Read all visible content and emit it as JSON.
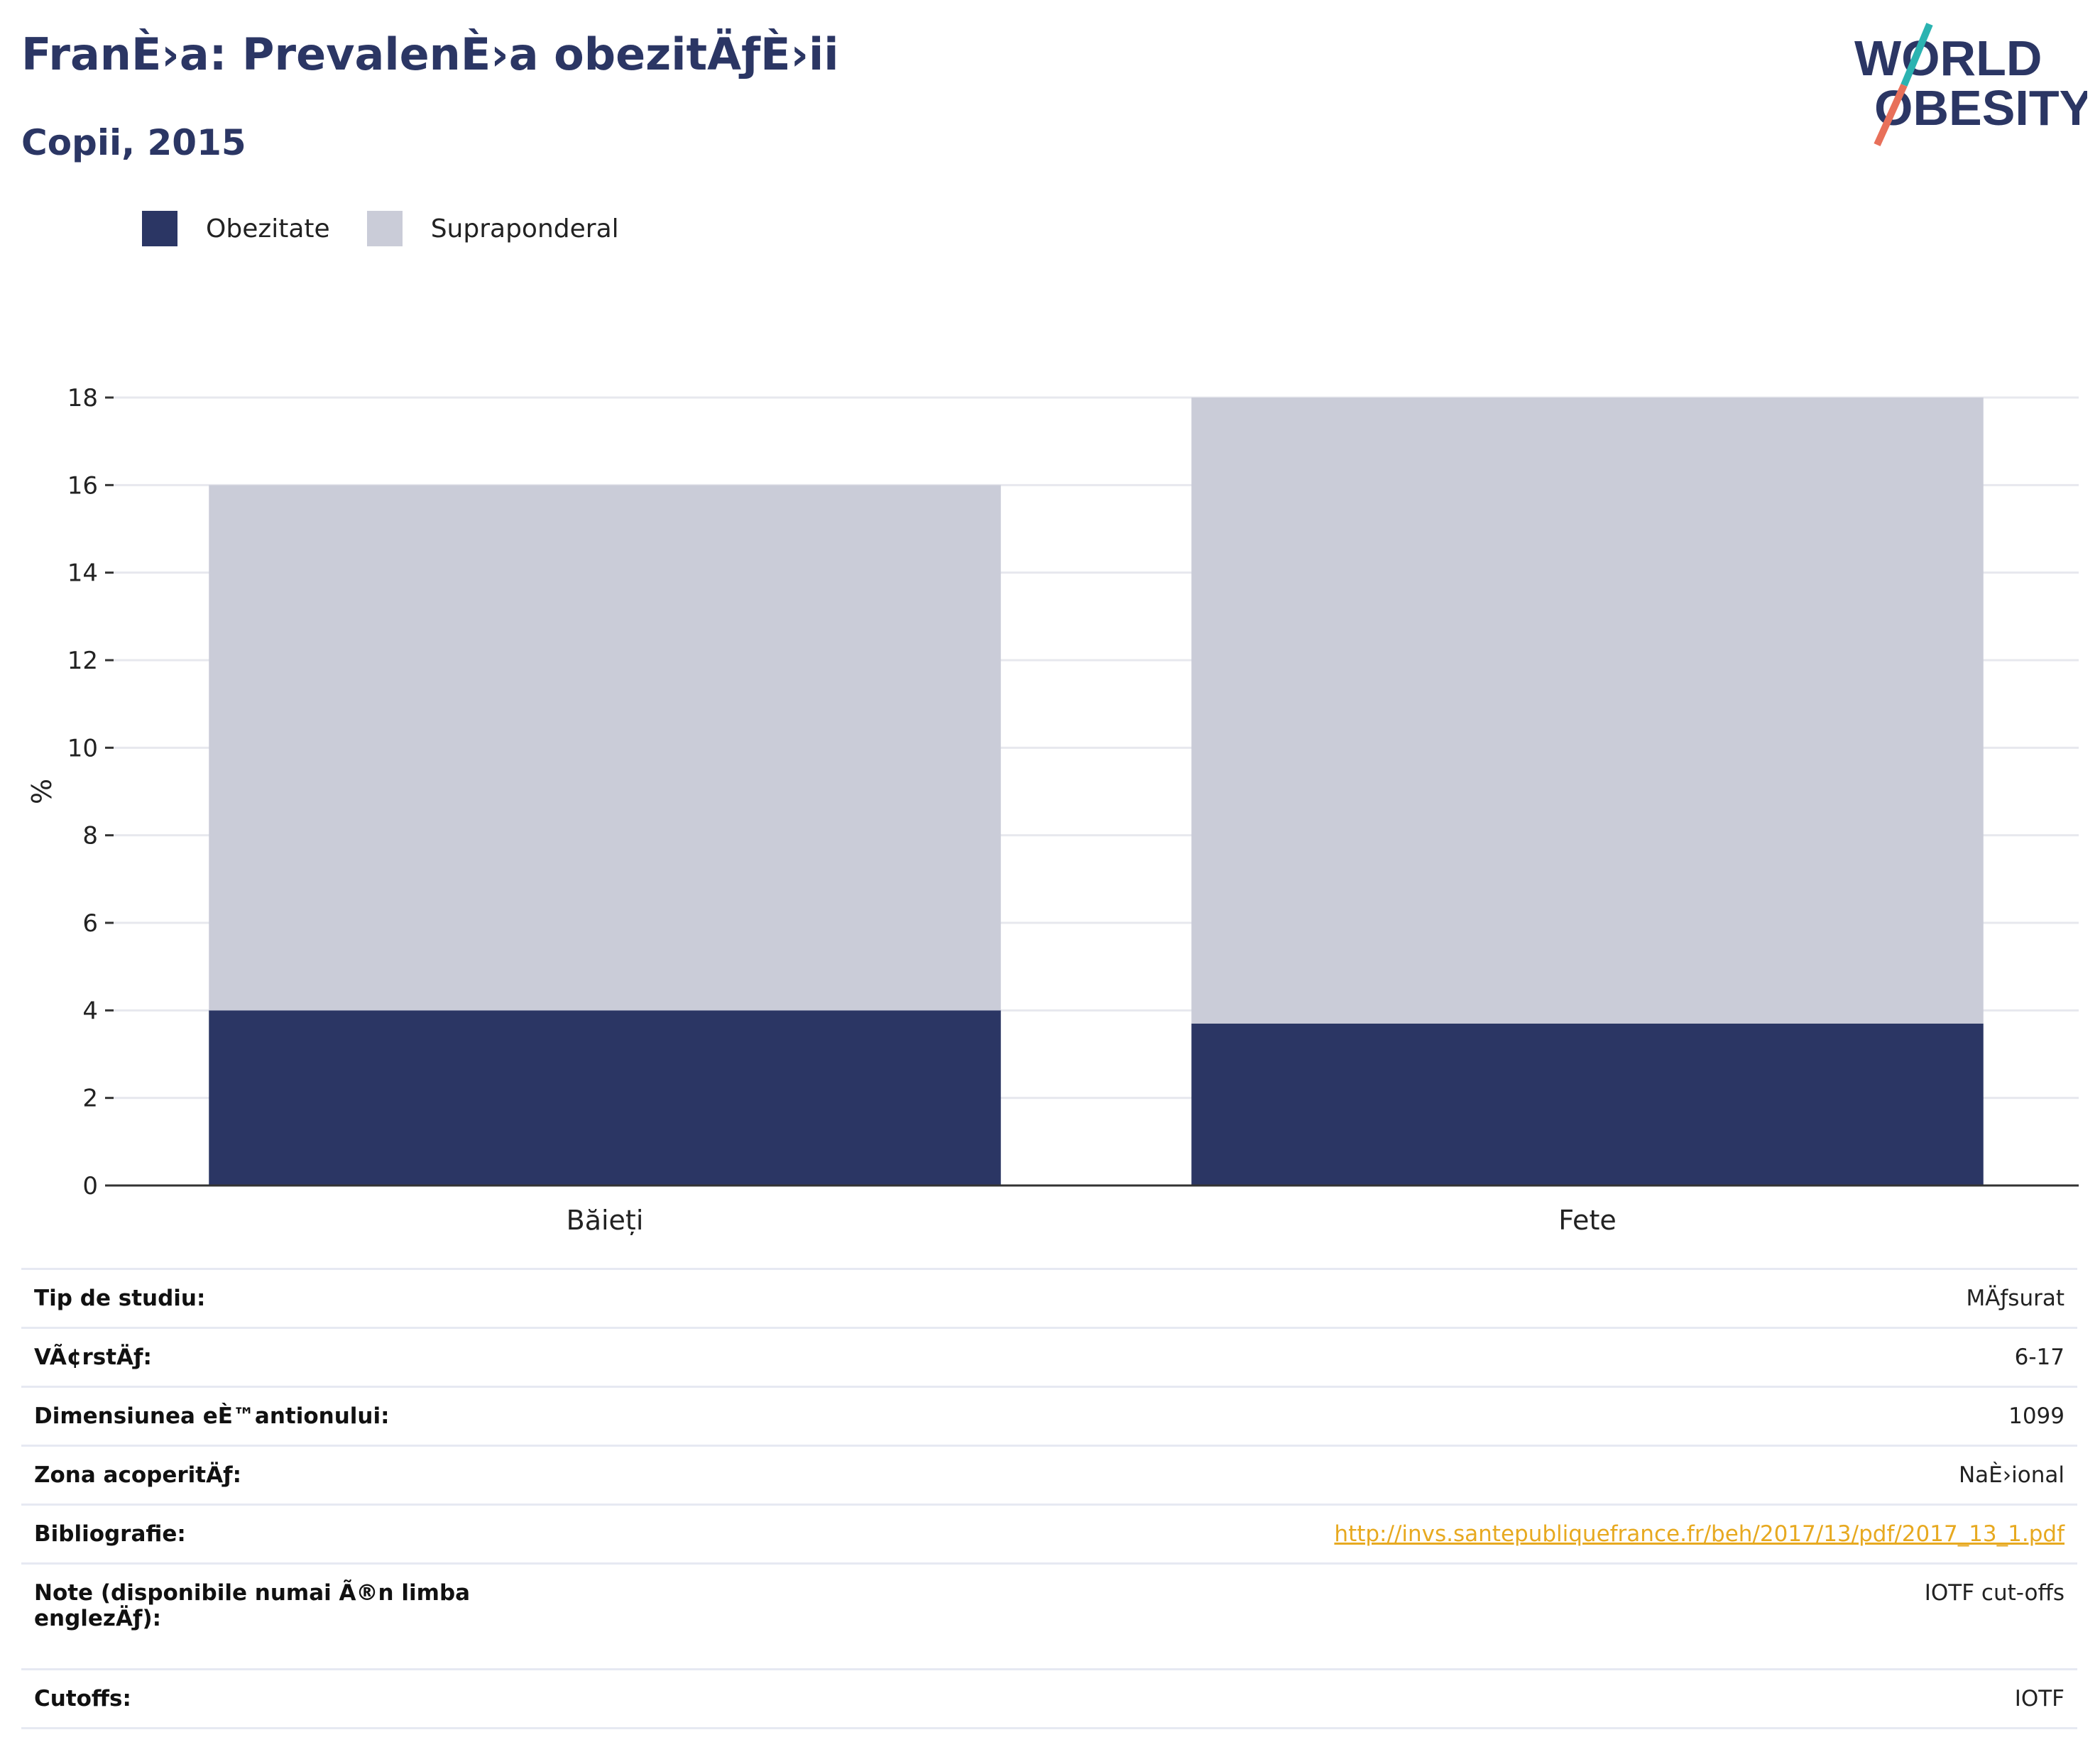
{
  "header": {
    "title": "FranÈ›a: PrevalenÈ›a obezitÄƒÈ›ii",
    "subtitle": "Copii, 2015"
  },
  "logo": {
    "line1": "WORLD",
    "line2": "OBESITY",
    "colors": {
      "text": "#2b3664",
      "slash_top": "#2bb3b1",
      "slash_bottom": "#e8705a"
    }
  },
  "chart_data": {
    "type": "bar",
    "stacked": true,
    "categories": [
      "Băieți",
      "Fete"
    ],
    "series": [
      {
        "name": "Obezitate",
        "color": "#2b3664",
        "values": [
          4.0,
          3.7
        ]
      },
      {
        "name": "Supraponderal",
        "color": "#caccd8",
        "values": [
          12.0,
          14.3
        ]
      }
    ],
    "ylabel": "%",
    "xlabel": "",
    "ylim": [
      0,
      18
    ],
    "yticks": [
      0,
      2,
      4,
      6,
      8,
      10,
      12,
      14,
      16,
      18
    ],
    "grid": true,
    "legend_position": "top-left"
  },
  "info": {
    "rows": [
      {
        "label": "Tip de studiu:",
        "value": "MÄƒsurat"
      },
      {
        "label": "VÃ¢rstÄƒ:",
        "value": "6-17"
      },
      {
        "label": "Dimensiunea eÈ™antionului:",
        "value": "1099"
      },
      {
        "label": "Zona acoperitÄƒ:",
        "value": "NaÈ›ional"
      },
      {
        "label": "Bibliografie:",
        "value": "http://invs.santepubliquefrance.fr/beh/2017/13/pdf/2017_13_1.pdf",
        "link": true
      },
      {
        "label": "Note (disponibile numai Ã®n limba englezÄƒ):",
        "value": "IOTF cut-offs",
        "tall": true
      },
      {
        "label": "Cutoffs:",
        "value": "IOTF"
      }
    ]
  }
}
